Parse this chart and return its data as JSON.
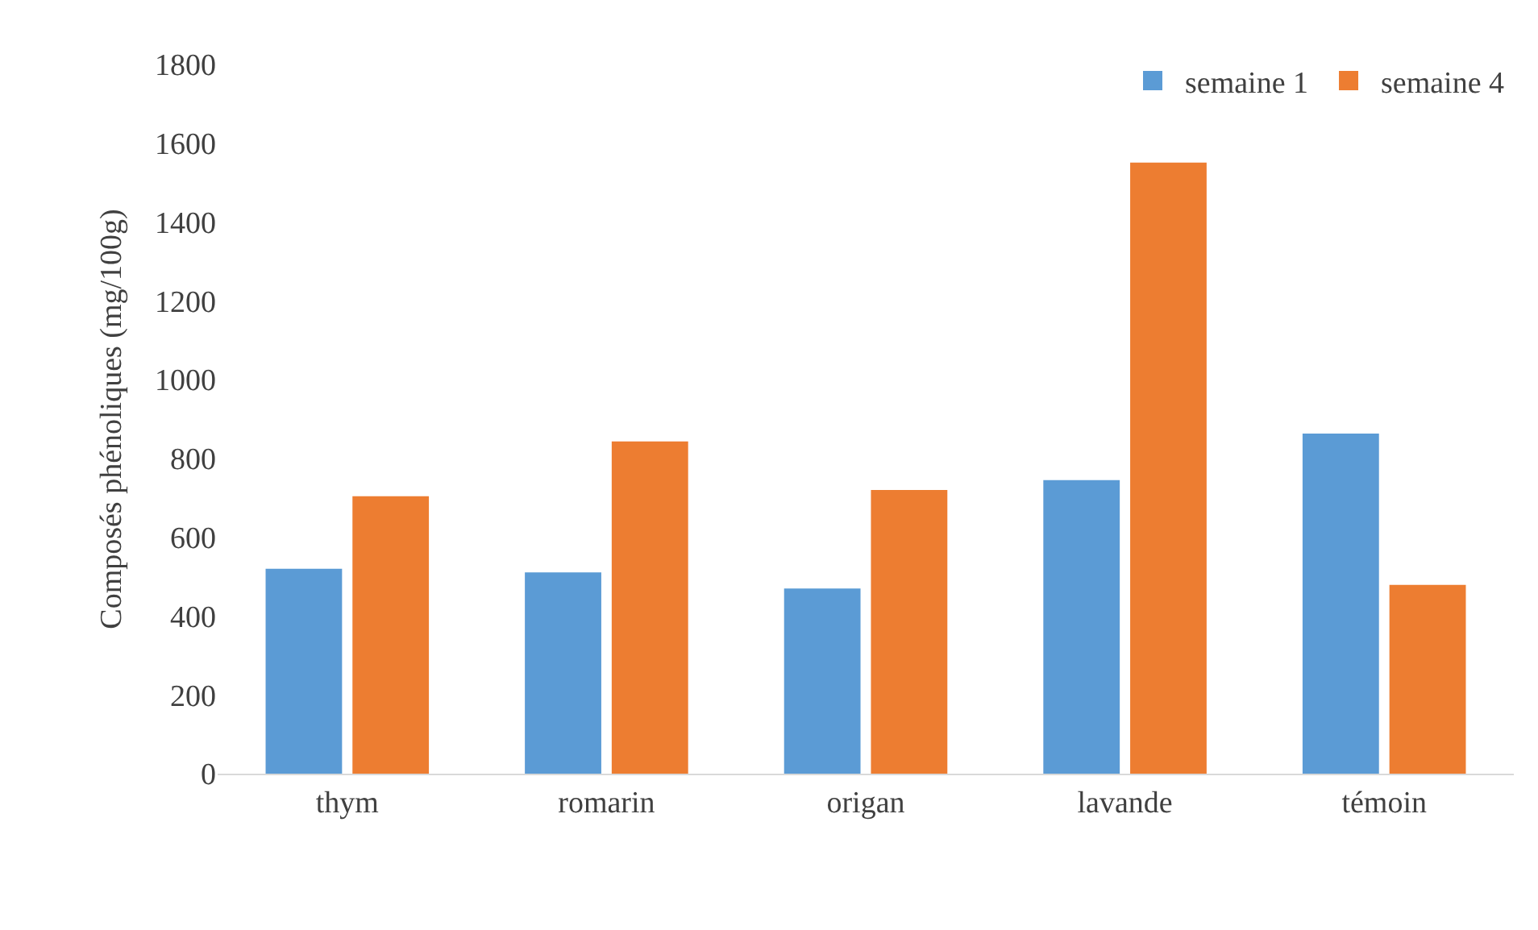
{
  "chart_data": {
    "type": "bar",
    "ylabel": "Composés phénoliques (mg/100g)",
    "categories": [
      "thym",
      "romarin",
      "origan",
      "lavande",
      "témoin"
    ],
    "series": [
      {
        "name": "semaine 1",
        "color": "#5b9bd5",
        "values": [
          520,
          511,
          470,
          745,
          863
        ]
      },
      {
        "name": "semaine 4",
        "color": "#ed7d31",
        "values": [
          704,
          843,
          720,
          1551,
          479
        ]
      }
    ],
    "ylim": [
      0,
      1800
    ],
    "yticks": [
      0,
      200,
      400,
      600,
      800,
      1000,
      1200,
      1400,
      1600,
      1800
    ],
    "grid": false,
    "legend": "top right"
  }
}
